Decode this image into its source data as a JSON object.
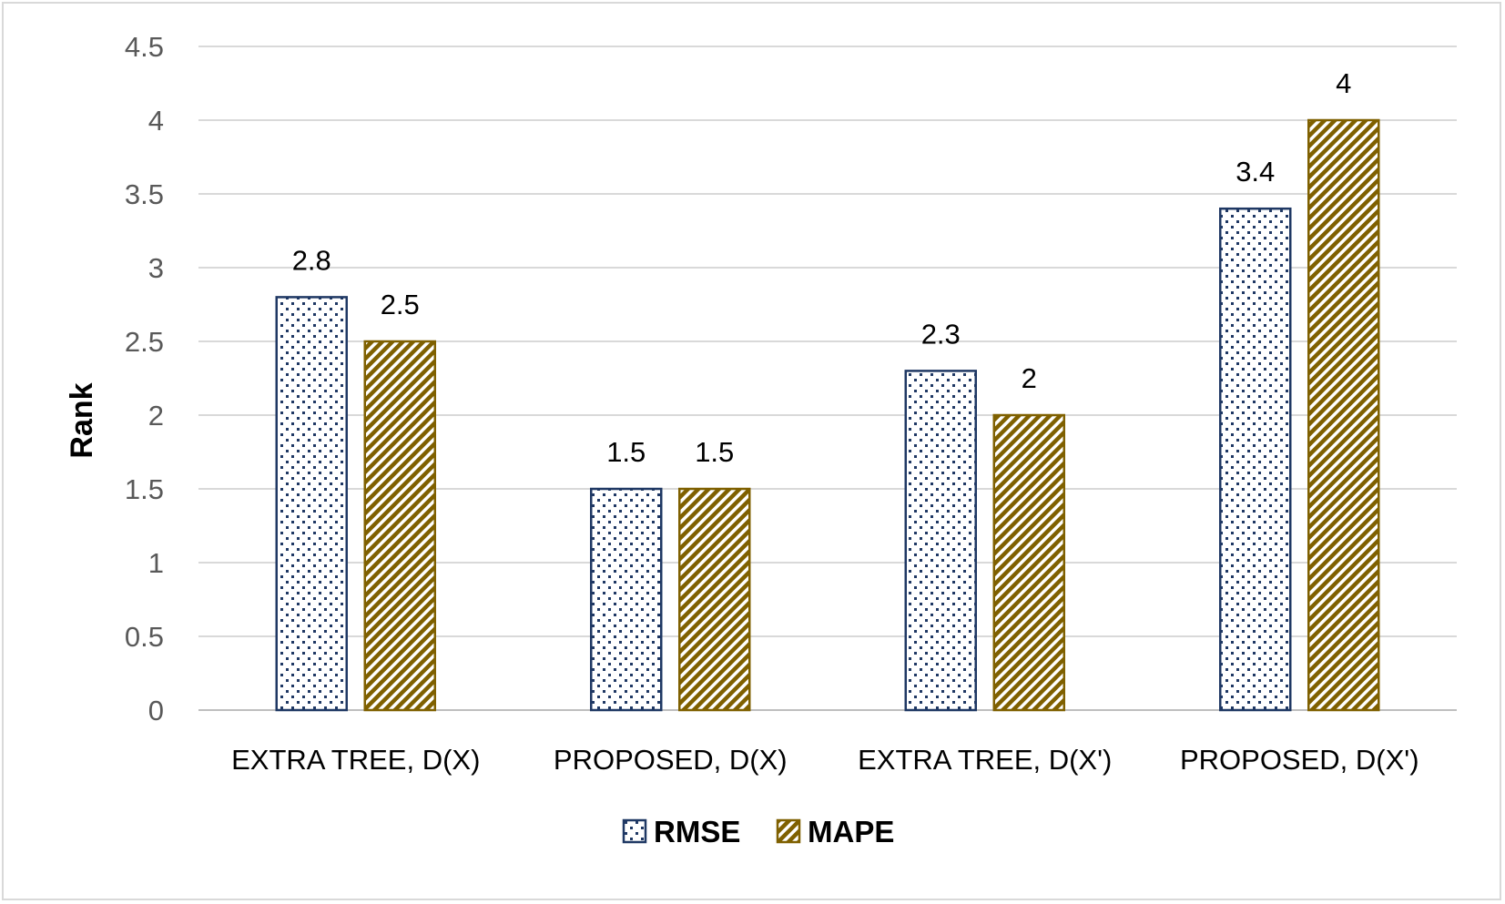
{
  "chart_data": {
    "type": "bar",
    "title": "",
    "xlabel": "",
    "ylabel": "Rank",
    "ylim": [
      0,
      4.5
    ],
    "yticks": [
      "0",
      "0.5",
      "1",
      "1.5",
      "2",
      "2.5",
      "3",
      "3.5",
      "4",
      "4.5"
    ],
    "categories": [
      "EXTRA TREE, D(X)",
      "PROPOSED,  D(X)",
      "EXTRA TREE, D(X')",
      "PROPOSED, D(X')"
    ],
    "series": [
      {
        "name": "RMSE",
        "values": [
          2.8,
          1.5,
          2.3,
          3.4
        ],
        "labels": [
          "2.8",
          "1.5",
          "2.3",
          "3.4"
        ],
        "color": "#1f3864",
        "pattern": "dotted"
      },
      {
        "name": "MAPE",
        "values": [
          2.5,
          1.5,
          2,
          4
        ],
        "labels": [
          "2.5",
          "1.5",
          "2",
          "4"
        ],
        "color": "#7f6000",
        "pattern": "diagonal-stripes"
      }
    ],
    "grid": true,
    "legend": "bottom-center"
  }
}
